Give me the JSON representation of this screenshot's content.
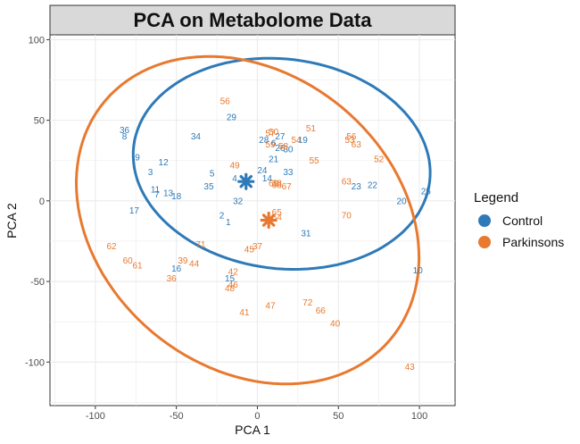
{
  "chart_data": {
    "type": "scatter",
    "title": "PCA on Metabolome Data",
    "xlabel": "PCA 1",
    "ylabel": "PCA 2",
    "xlim": [
      -128,
      122
    ],
    "ylim": [
      -127,
      103
    ],
    "xticks": [
      -100,
      -50,
      0,
      50,
      100
    ],
    "yticks": [
      -100,
      -50,
      0,
      50,
      100
    ],
    "grid": true,
    "legend": {
      "title": "Legend",
      "position": "right"
    },
    "colors": {
      "Control": "#2E7AB8",
      "Parkinsons": "#E8792F",
      "panel_bg": "#ffffff",
      "grid": "#ebebeb",
      "strip_bg": "#d9d9d9"
    },
    "series": [
      {
        "name": "Control",
        "centroid": [
          -7,
          12
        ],
        "ellipse": {
          "cx": 15,
          "cy": 23,
          "rx": 92,
          "ry": 65,
          "angle": -7
        },
        "points": [
          {
            "label": "1",
            "x": -18,
            "y": -13
          },
          {
            "label": "2",
            "x": -22,
            "y": -9
          },
          {
            "label": "3",
            "x": -66,
            "y": 18
          },
          {
            "label": "4",
            "x": -14,
            "y": 14
          },
          {
            "label": "5",
            "x": -28,
            "y": 17
          },
          {
            "label": "7",
            "x": -62,
            "y": 4
          },
          {
            "label": "8",
            "x": -82,
            "y": 40
          },
          {
            "label": "9",
            "x": -74,
            "y": 27
          },
          {
            "label": "10",
            "x": 99,
            "y": -43
          },
          {
            "label": "11",
            "x": -63,
            "y": 7
          },
          {
            "label": "12",
            "x": -58,
            "y": 24
          },
          {
            "label": "13",
            "x": -55,
            "y": 5
          },
          {
            "label": "14",
            "x": 6,
            "y": 14
          },
          {
            "label": "15",
            "x": -17,
            "y": -48
          },
          {
            "label": "16",
            "x": -50,
            "y": -42
          },
          {
            "label": "17",
            "x": -76,
            "y": -6
          },
          {
            "label": "18",
            "x": -50,
            "y": 3
          },
          {
            "label": "19",
            "x": 28,
            "y": 38
          },
          {
            "label": "20",
            "x": 89,
            "y": 0
          },
          {
            "label": "21",
            "x": 10,
            "y": 26
          },
          {
            "label": "22",
            "x": 71,
            "y": 10
          },
          {
            "label": "23",
            "x": 61,
            "y": 9
          },
          {
            "label": "24",
            "x": 3,
            "y": 19
          },
          {
            "label": "25",
            "x": 104,
            "y": 6
          },
          {
            "label": "26",
            "x": 14,
            "y": 33
          },
          {
            "label": "27",
            "x": 14,
            "y": 40
          },
          {
            "label": "28",
            "x": 4,
            "y": 38
          },
          {
            "label": "29",
            "x": -16,
            "y": 52
          },
          {
            "label": "30",
            "x": 19,
            "y": 32
          },
          {
            "label": "31",
            "x": 30,
            "y": -20
          },
          {
            "label": "32",
            "x": -12,
            "y": 0
          },
          {
            "label": "33",
            "x": 19,
            "y": 18
          },
          {
            "label": "34",
            "x": -38,
            "y": 40
          },
          {
            "label": "35",
            "x": -30,
            "y": 9
          },
          {
            "label": "36",
            "x": -82,
            "y": 44
          },
          {
            "label": "6",
            "x": 10,
            "y": 36
          }
        ]
      },
      {
        "name": "Parkinsons",
        "centroid": [
          7,
          -12
        ],
        "ellipse": {
          "cx": -6,
          "cy": -12,
          "rx": 115,
          "ry": 91,
          "angle": -40
        },
        "points": [
          {
            "label": "36",
            "x": -53,
            "y": -48
          },
          {
            "label": "37",
            "x": 0,
            "y": -28
          },
          {
            "label": "38",
            "x": 12,
            "y": 11
          },
          {
            "label": "39",
            "x": -46,
            "y": -37
          },
          {
            "label": "40",
            "x": 48,
            "y": -76
          },
          {
            "label": "41",
            "x": -8,
            "y": -69
          },
          {
            "label": "42",
            "x": -15,
            "y": -44
          },
          {
            "label": "43",
            "x": 94,
            "y": -103
          },
          {
            "label": "44",
            "x": -39,
            "y": -39
          },
          {
            "label": "45",
            "x": -5,
            "y": -30
          },
          {
            "label": "46",
            "x": -15,
            "y": -52
          },
          {
            "label": "47",
            "x": 8,
            "y": -65
          },
          {
            "label": "48",
            "x": -17,
            "y": -54
          },
          {
            "label": "49",
            "x": -14,
            "y": 22
          },
          {
            "label": "50",
            "x": 10,
            "y": 43
          },
          {
            "label": "51",
            "x": 33,
            "y": 45
          },
          {
            "label": "52",
            "x": 75,
            "y": 26
          },
          {
            "label": "54",
            "x": 24,
            "y": 38
          },
          {
            "label": "55",
            "x": 35,
            "y": 25
          },
          {
            "label": "56",
            "x": -20,
            "y": 62
          },
          {
            "label": "57",
            "x": 8,
            "y": 42
          },
          {
            "label": "58",
            "x": 16,
            "y": 34
          },
          {
            "label": "59",
            "x": 8,
            "y": 35
          },
          {
            "label": "60",
            "x": -80,
            "y": -37
          },
          {
            "label": "61",
            "x": -74,
            "y": -40
          },
          {
            "label": "62",
            "x": -90,
            "y": -28
          },
          {
            "label": "63",
            "x": 55,
            "y": 12
          },
          {
            "label": "64",
            "x": 12,
            "y": -10
          },
          {
            "label": "65",
            "x": 12,
            "y": -7
          },
          {
            "label": "66",
            "x": 39,
            "y": -68
          },
          {
            "label": "67",
            "x": 18,
            "y": 9
          },
          {
            "label": "68",
            "x": 12,
            "y": 10
          },
          {
            "label": "69",
            "x": 10,
            "y": 11
          },
          {
            "label": "70",
            "x": 55,
            "y": -9
          },
          {
            "label": "71",
            "x": -35,
            "y": -27
          },
          {
            "label": "72",
            "x": 31,
            "y": -63
          },
          {
            "label": "53",
            "x": 57,
            "y": 38
          },
          {
            "label": "63",
            "x": 61,
            "y": 35
          },
          {
            "label": "56",
            "x": 58,
            "y": 40
          }
        ]
      }
    ]
  }
}
